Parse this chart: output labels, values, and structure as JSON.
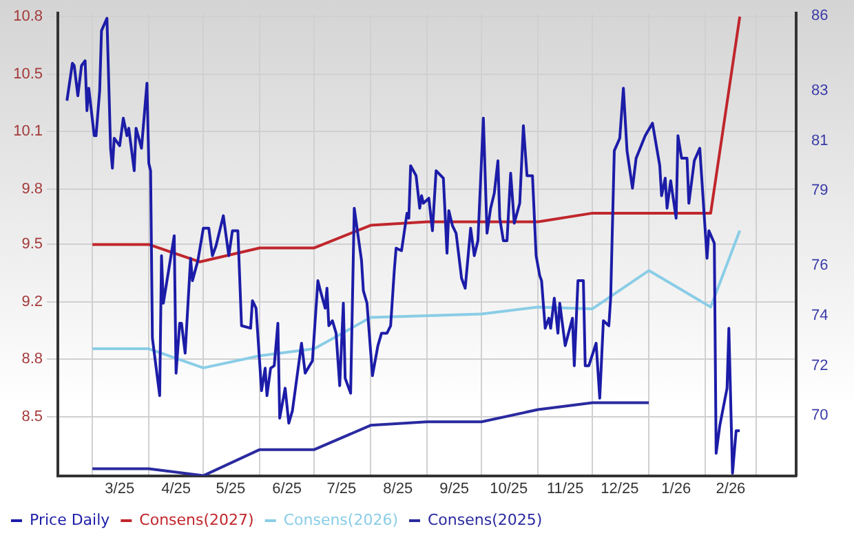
{
  "chart_data": {
    "type": "line",
    "xlim": [
      "2025-02-10",
      "2026-03-23"
    ],
    "xticks": [
      {
        "value": "2025-03-01",
        "label": null
      },
      {
        "value": "2025-03-16",
        "label": "3/25"
      },
      {
        "value": "2025-04-01",
        "label": null
      },
      {
        "value": "2025-04-16",
        "label": "4/25"
      },
      {
        "value": "2025-05-01",
        "label": null
      },
      {
        "value": "2025-05-16",
        "label": "5/25"
      },
      {
        "value": "2025-06-01",
        "label": null
      },
      {
        "value": "2025-06-16",
        "label": "6/25"
      },
      {
        "value": "2025-07-01",
        "label": null
      },
      {
        "value": "2025-07-16",
        "label": "7/25"
      },
      {
        "value": "2025-08-01",
        "label": null
      },
      {
        "value": "2025-08-16",
        "label": "8/25"
      },
      {
        "value": "2025-09-01",
        "label": null
      },
      {
        "value": "2025-09-16",
        "label": "9/25"
      },
      {
        "value": "2025-10-01",
        "label": null
      },
      {
        "value": "2025-10-16",
        "label": "10/25"
      },
      {
        "value": "2025-11-01",
        "label": null
      },
      {
        "value": "2025-11-16",
        "label": "11/25"
      },
      {
        "value": "2025-12-01",
        "label": null
      },
      {
        "value": "2025-12-16",
        "label": "12/25"
      },
      {
        "value": "2026-01-01",
        "label": null
      },
      {
        "value": "2026-01-16",
        "label": "1/26"
      },
      {
        "value": "2026-02-01",
        "label": null
      },
      {
        "value": "2026-02-15",
        "label": "2/26"
      },
      {
        "value": "2026-03-01",
        "label": null
      }
    ],
    "ylim": [
      8.16,
      10.82
    ],
    "yticks": [
      8.5,
      {
        "value": 8.83,
        "label": "8.8"
      },
      {
        "value": 9.16,
        "label": "9.2"
      },
      {
        "value": 9.49,
        "label": "9.5"
      },
      {
        "value": 9.81,
        "label": "9.8"
      },
      {
        "value": 10.14,
        "label": "10.1"
      },
      {
        "value": 10.47,
        "label": "10.5"
      },
      10.8
    ],
    "y2lim": [
      67.6,
      86.1
    ],
    "y2ticks": [
      70,
      72,
      74,
      76,
      79,
      81,
      83,
      86
    ],
    "grid": true,
    "legend": "bottom left",
    "series": [
      {
        "name": "Price Daily",
        "color": "#1c1ca8",
        "axis": "y2",
        "x": [
          "2025-02-15",
          "2025-02-18",
          "2025-02-19",
          "2025-02-21",
          "2025-02-23",
          "2025-02-25",
          "2025-02-26",
          "2025-02-27",
          "2025-03-02",
          "2025-03-03",
          "2025-03-05",
          "2025-03-06",
          "2025-03-09",
          "2025-03-11",
          "2025-03-12",
          "2025-03-13",
          "2025-03-16",
          "2025-03-18",
          "2025-03-20",
          "2025-03-21",
          "2025-03-24",
          "2025-03-25",
          "2025-03-28",
          "2025-03-31",
          "2025-04-01",
          "2025-04-02",
          "2025-04-03",
          "2025-04-07",
          "2025-04-08",
          "2025-04-09",
          "2025-04-15",
          "2025-04-16",
          "2025-04-18",
          "2025-04-19",
          "2025-04-21",
          "2025-04-24",
          "2025-04-25",
          "2025-04-28",
          "2025-05-01",
          "2025-05-04",
          "2025-05-06",
          "2025-05-08",
          "2025-05-12",
          "2025-05-15",
          "2025-05-17",
          "2025-05-20",
          "2025-05-22",
          "2025-05-27",
          "2025-05-28",
          "2025-05-30",
          "2025-06-02",
          "2025-06-04",
          "2025-06-05",
          "2025-06-07",
          "2025-06-09",
          "2025-06-11",
          "2025-06-12",
          "2025-06-15",
          "2025-06-17",
          "2025-06-19",
          "2025-06-24",
          "2025-06-26",
          "2025-06-30",
          "2025-07-03",
          "2025-07-04",
          "2025-07-07",
          "2025-07-08",
          "2025-07-09",
          "2025-07-11",
          "2025-07-13",
          "2025-07-15",
          "2025-07-17",
          "2025-07-18",
          "2025-07-21",
          "2025-07-23",
          "2025-07-27",
          "2025-07-28",
          "2025-07-30",
          "2025-08-02",
          "2025-08-05",
          "2025-08-07",
          "2025-08-10",
          "2025-08-12",
          "2025-08-14",
          "2025-08-15",
          "2025-08-18",
          "2025-08-21",
          "2025-08-22",
          "2025-08-23",
          "2025-08-26",
          "2025-08-28",
          "2025-08-29",
          "2025-08-30",
          "2025-09-02",
          "2025-09-04",
          "2025-09-06",
          "2025-09-10",
          "2025-09-12",
          "2025-09-13",
          "2025-09-15",
          "2025-09-17",
          "2025-09-18",
          "2025-09-20",
          "2025-09-22",
          "2025-09-25",
          "2025-09-27",
          "2025-09-29",
          "2025-10-02",
          "2025-10-04",
          "2025-10-06",
          "2025-10-08",
          "2025-10-10",
          "2025-10-11",
          "2025-10-13",
          "2025-10-15",
          "2025-10-17",
          "2025-10-19",
          "2025-10-22",
          "2025-10-24",
          "2025-10-26",
          "2025-10-29",
          "2025-10-31",
          "2025-11-02",
          "2025-11-03",
          "2025-11-05",
          "2025-11-07",
          "2025-11-08",
          "2025-11-10",
          "2025-11-12",
          "2025-11-13",
          "2025-11-16",
          "2025-11-20",
          "2025-11-21",
          "2025-11-23",
          "2025-11-26",
          "2025-11-27",
          "2025-11-29",
          "2025-12-03",
          "2025-12-05",
          "2025-12-07",
          "2025-12-10",
          "2025-12-11",
          "2025-12-13",
          "2025-12-16",
          "2025-12-18",
          "2025-12-20",
          "2025-12-23",
          "2025-12-25",
          "2025-12-30",
          "2026-01-03",
          "2026-01-07",
          "2026-01-08",
          "2026-01-10",
          "2026-01-11",
          "2026-01-13",
          "2026-01-16",
          "2026-01-17",
          "2026-01-19",
          "2026-01-22",
          "2026-01-23",
          "2026-01-26",
          "2026-01-29",
          "2026-02-01",
          "2026-02-02",
          "2026-02-03",
          "2026-02-06",
          "2026-02-07",
          "2026-02-09",
          "2026-02-13",
          "2026-02-14",
          "2026-02-16",
          "2026-02-18",
          "2026-02-20"
        ],
        "values": [
          82.6,
          84.1,
          84.0,
          82.8,
          84.0,
          84.2,
          82.2,
          83.1,
          81.2,
          81.2,
          83.0,
          85.4,
          85.9,
          80.7,
          79.9,
          81.1,
          80.8,
          81.9,
          81.2,
          81.5,
          79.8,
          81.5,
          80.7,
          83.3,
          80.1,
          79.8,
          73.1,
          70.8,
          76.4,
          74.5,
          77.2,
          71.7,
          73.7,
          73.7,
          72.5,
          76.3,
          75.4,
          76.2,
          77.5,
          77.5,
          76.4,
          76.8,
          78.0,
          76.4,
          77.4,
          77.4,
          73.6,
          73.5,
          74.6,
          74.3,
          71.0,
          71.9,
          70.8,
          71.9,
          72.0,
          73.7,
          69.9,
          71.1,
          69.7,
          70.2,
          72.9,
          71.7,
          72.2,
          75.4,
          75.1,
          74.3,
          75.1,
          73.6,
          73.8,
          73.3,
          71.2,
          74.5,
          71.5,
          70.9,
          78.3,
          76.2,
          75.0,
          74.5,
          71.6,
          72.8,
          73.3,
          73.3,
          73.6,
          75.8,
          76.7,
          76.6,
          78.1,
          77.9,
          80.0,
          79.6,
          78.3,
          78.8,
          78.5,
          78.7,
          77.4,
          79.8,
          79.5,
          76.5,
          78.2,
          77.6,
          77.3,
          76.7,
          75.5,
          75.1,
          77.5,
          76.4,
          77.0,
          81.9,
          77.3,
          78.3,
          78.9,
          80.2,
          77.9,
          77.0,
          77.0,
          79.7,
          77.7,
          78.5,
          81.6,
          79.6,
          79.6,
          76.4,
          75.6,
          75.4,
          73.5,
          73.9,
          73.5,
          74.7,
          73.3,
          74.5,
          72.8,
          73.9,
          72.0,
          75.4,
          75.4,
          72.0,
          72.0,
          72.9,
          70.7,
          73.8,
          73.6,
          74.7,
          80.6,
          81.1,
          83.1,
          80.6,
          79.1,
          80.3,
          81.2,
          81.7,
          80.0,
          78.8,
          79.5,
          78.3,
          79.4,
          77.9,
          81.2,
          80.3,
          80.3,
          78.5,
          80.2,
          80.7,
          77.4,
          76.3,
          77.4,
          76.9,
          68.5,
          69.6,
          71.1,
          73.5,
          67.7,
          69.4,
          69.4
        ]
      },
      {
        "name": "Consens(2027)",
        "color": "#c0262c",
        "axis": "y",
        "x": [
          "2025-03-01",
          "2025-04-01",
          "2025-04-29",
          "2025-06-01",
          "2025-07-01",
          "2025-08-01",
          "2025-09-01",
          "2025-11-01",
          "2025-12-01",
          "2026-02-04",
          "2026-02-20"
        ],
        "values": [
          9.49,
          9.49,
          9.39,
          9.47,
          9.47,
          9.6,
          9.62,
          9.62,
          9.67,
          9.67,
          10.8
        ]
      },
      {
        "name": "Consens(2026)",
        "color": "#8acde6",
        "axis": "y",
        "x": [
          "2025-03-01",
          "2025-04-01",
          "2025-05-01",
          "2025-06-01",
          "2025-07-01",
          "2025-08-01",
          "2025-09-01",
          "2025-10-01",
          "2025-11-01",
          "2025-12-01",
          "2026-01-01",
          "2026-02-04",
          "2026-02-20"
        ],
        "values": [
          8.89,
          8.89,
          8.78,
          8.85,
          8.89,
          9.07,
          9.08,
          9.09,
          9.13,
          9.12,
          9.34,
          9.13,
          9.57
        ]
      },
      {
        "name": "Consens(2025)",
        "color": "#2a2aa0",
        "axis": "y",
        "x": [
          "2025-03-01",
          "2025-04-01",
          "2025-05-01",
          "2025-06-01",
          "2025-07-01",
          "2025-08-01",
          "2025-09-01",
          "2025-10-01",
          "2025-11-01",
          "2025-12-01",
          "2026-01-01"
        ],
        "values": [
          8.2,
          8.2,
          8.16,
          8.31,
          8.31,
          8.45,
          8.47,
          8.47,
          8.54,
          8.58,
          8.58
        ]
      }
    ]
  }
}
